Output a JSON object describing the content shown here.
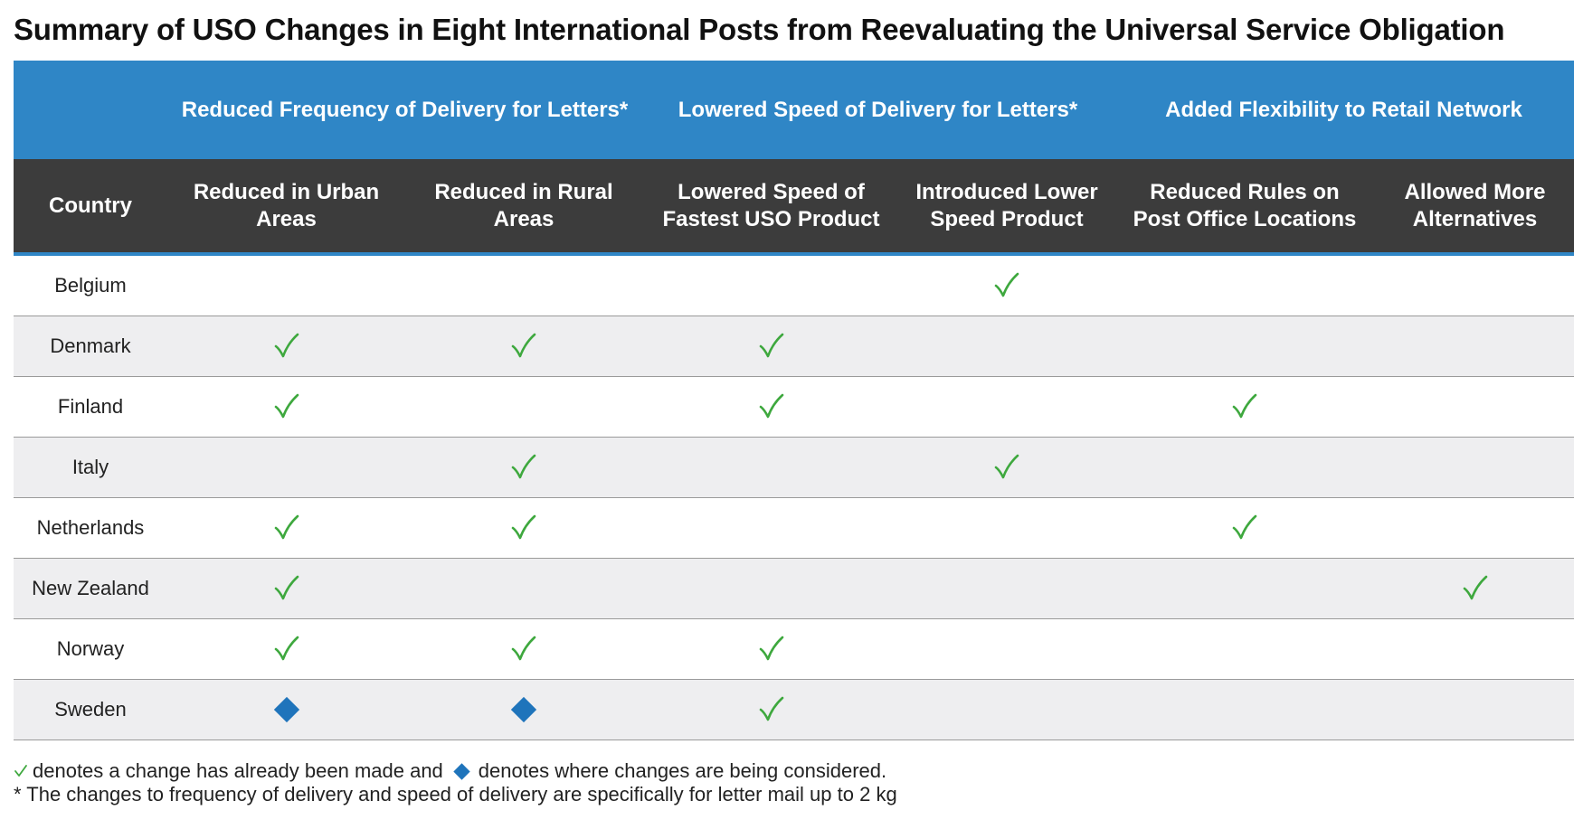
{
  "title": "Summary of USO Changes in Eight International Posts from Reevaluating the Universal Service Obligation",
  "groups": [
    {
      "label": "Reduced Frequency of Delivery for Letters*"
    },
    {
      "label": "Lowered Speed of Delivery for Letters*"
    },
    {
      "label": "Added Flexibility to Retail Network"
    }
  ],
  "columns": [
    {
      "line1": "Country",
      "line2": ""
    },
    {
      "line1": "Reduced in Urban",
      "line2": "Areas"
    },
    {
      "line1": "Reduced in Rural",
      "line2": "Areas"
    },
    {
      "line1": "Lowered Speed of",
      "line2": "Fastest USO Product"
    },
    {
      "line1": "Introduced Lower",
      "line2": "Speed Product"
    },
    {
      "line1": "Reduced Rules on",
      "line2": "Post Office Locations"
    },
    {
      "line1": "Allowed More",
      "line2": "Alternatives"
    }
  ],
  "rows": [
    {
      "country": "Belgium",
      "marks": [
        "",
        "",
        "",
        "check",
        "",
        ""
      ]
    },
    {
      "country": "Denmark",
      "marks": [
        "check",
        "check",
        "check",
        "",
        "",
        ""
      ]
    },
    {
      "country": "Finland",
      "marks": [
        "check",
        "",
        "check",
        "",
        "check",
        ""
      ]
    },
    {
      "country": "Italy",
      "marks": [
        "",
        "check",
        "",
        "check",
        "",
        ""
      ]
    },
    {
      "country": "Netherlands",
      "marks": [
        "check",
        "check",
        "",
        "",
        "check",
        ""
      ]
    },
    {
      "country": "New Zealand",
      "marks": [
        "check",
        "",
        "",
        "",
        "",
        "check"
      ]
    },
    {
      "country": "Norway",
      "marks": [
        "check",
        "check",
        "check",
        "",
        "",
        ""
      ]
    },
    {
      "country": "Sweden",
      "marks": [
        "diamond",
        "diamond",
        "check",
        "",
        "",
        ""
      ]
    }
  ],
  "legend": {
    "check_text": "denotes a change has already been made and",
    "diamond_text": "denotes where changes are being considered.",
    "footnote": "* The changes to frequency of delivery and speed of delivery are specifically for letter mail up to 2 kg"
  },
  "colors": {
    "header_blue": "#2f86c6",
    "header_dark": "#3c3c3c",
    "check_green": "#3ea83e",
    "diamond_blue": "#1f74bb",
    "alt_row": "#eeeef0"
  }
}
